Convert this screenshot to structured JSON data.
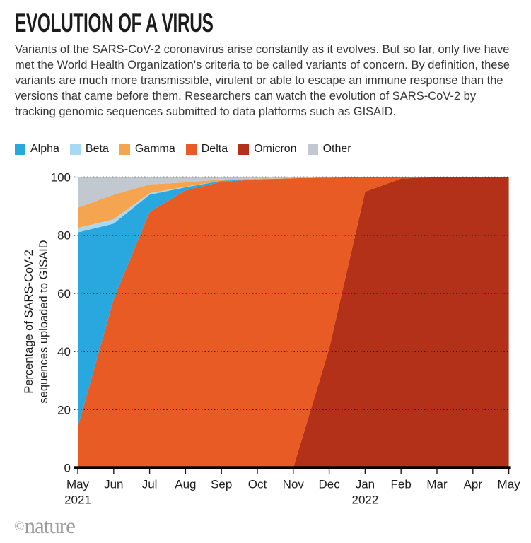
{
  "header": {
    "title": "EVOLUTION OF A VIRUS",
    "description": "Variants of the SARS-CoV-2 coronavirus arise constantly as it evolves. But so far, only five have met the World Health Organization's criteria to be called variants of concern. By definition, these variants are much more transmissible, virulent or able to escape an immune response than the versions that came before them. Researchers can watch the evolution of SARS-CoV-2 by tracking genomic sequences submitted to data platforms such as GISAID."
  },
  "chart_data": {
    "type": "area",
    "stacked": true,
    "x_tick_labels": [
      "May",
      "Jun",
      "Jul",
      "Aug",
      "Sep",
      "Oct",
      "Nov",
      "Dec",
      "Jan",
      "Feb",
      "Mar",
      "Apr",
      "May"
    ],
    "x_year_labels": [
      {
        "label": "2021",
        "index": 0
      },
      {
        "label": "2022",
        "index": 8
      }
    ],
    "ylabel_lines": [
      "Percentage of SARS-CoV-2",
      "sequences uploaded to GISAID"
    ],
    "ylim": [
      0,
      100
    ],
    "yticks": [
      0,
      20,
      40,
      60,
      80,
      100
    ],
    "grid": "horizontal dotted",
    "legend_position": "top-left",
    "stack_order_bottom_to_top": [
      "Omicron",
      "Delta",
      "Alpha",
      "Beta",
      "Gamma",
      "Other"
    ],
    "series": [
      {
        "name": "Alpha",
        "color": "#29A8E0",
        "values": [
          67,
          26,
          6,
          1,
          0.3,
          0.1,
          0,
          0,
          0,
          0,
          0,
          0,
          0
        ]
      },
      {
        "name": "Beta",
        "color": "#A9D9F2",
        "values": [
          1.5,
          1.5,
          0.5,
          0.2,
          0,
          0,
          0,
          0,
          0,
          0,
          0,
          0,
          0
        ]
      },
      {
        "name": "Gamma",
        "color": "#F5A54F",
        "values": [
          7,
          8.5,
          3,
          1.5,
          0.5,
          0.2,
          0,
          0,
          0,
          0,
          0,
          0,
          0
        ]
      },
      {
        "name": "Delta",
        "color": "#E95B24",
        "values": [
          14,
          58,
          88,
          95.5,
          98.4,
          99.2,
          99.6,
          58.8,
          5,
          0.5,
          0,
          0,
          0
        ]
      },
      {
        "name": "Omicron",
        "color": "#B33118",
        "values": [
          0,
          0,
          0,
          0,
          0,
          0,
          0,
          41,
          95,
          99.5,
          100,
          100,
          100
        ]
      },
      {
        "name": "Other",
        "color": "#C2C8D0",
        "values": [
          10.5,
          6,
          2.5,
          1.8,
          0.8,
          0.5,
          0.4,
          0.2,
          0,
          0,
          0,
          0,
          0
        ]
      }
    ],
    "axis_color": "#1c1c1c"
  },
  "footer": {
    "copyright": "©",
    "brand": "nature"
  }
}
